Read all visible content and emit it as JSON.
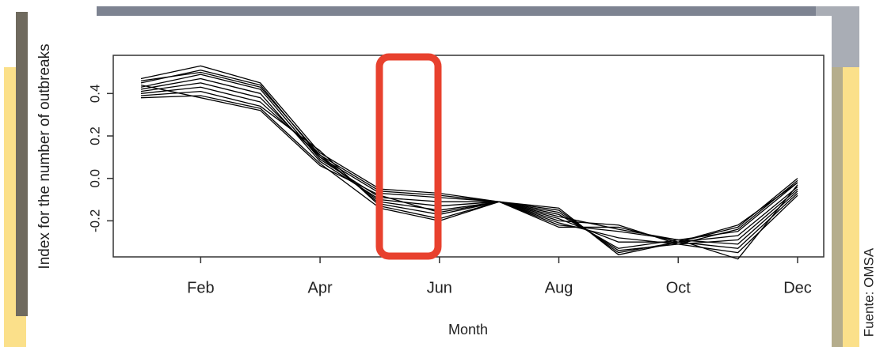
{
  "chart_data": {
    "type": "line",
    "y_label": "Index for the number of outbreaks",
    "x_label": "Month",
    "source": "Fuente: OMSA",
    "categories": [
      null,
      "Feb",
      null,
      "Apr",
      null,
      "Jun",
      null,
      "Aug",
      null,
      "Oct",
      null,
      "Dec"
    ],
    "ylim": [
      -0.37,
      0.58
    ],
    "yticks": [
      -0.2,
      {
        "value": 0,
        "label": "0.0"
      },
      0.2,
      0.4
    ],
    "series": [
      {
        "color": "#000000",
        "values": [
          0.47,
          0.53,
          0.45,
          0.12,
          -0.05,
          -0.07,
          -0.11,
          -0.15,
          -0.35,
          -0.3,
          -0.23,
          0.0
        ]
      },
      {
        "color": "#000000",
        "values": [
          0.45,
          0.51,
          0.44,
          0.1,
          -0.07,
          -0.09,
          -0.11,
          -0.17,
          -0.33,
          -0.29,
          -0.25,
          -0.02
        ]
      },
      {
        "color": "#000000",
        "values": [
          0.43,
          0.49,
          0.42,
          0.09,
          -0.09,
          -0.11,
          -0.11,
          -0.19,
          -0.3,
          -0.3,
          -0.27,
          -0.04
        ]
      },
      {
        "color": "#000000",
        "values": [
          0.42,
          0.47,
          0.4,
          0.08,
          -0.1,
          -0.13,
          -0.11,
          -0.21,
          -0.28,
          -0.31,
          -0.29,
          -0.05
        ]
      },
      {
        "color": "#000000",
        "values": [
          0.41,
          0.45,
          0.38,
          0.1,
          -0.11,
          -0.15,
          -0.11,
          -0.22,
          -0.25,
          -0.29,
          -0.31,
          -0.06
        ]
      },
      {
        "color": "#000000",
        "values": [
          0.4,
          0.43,
          0.36,
          0.11,
          -0.12,
          -0.17,
          -0.11,
          -0.23,
          -0.23,
          -0.3,
          -0.33,
          -0.07
        ]
      },
      {
        "color": "#000000",
        "values": [
          0.39,
          0.41,
          0.34,
          0.13,
          -0.13,
          -0.19,
          -0.11,
          -0.2,
          -0.22,
          -0.31,
          -0.35,
          -0.08
        ]
      },
      {
        "color": "#000000",
        "values": [
          0.38,
          0.39,
          0.33,
          0.07,
          -0.14,
          -0.2,
          -0.11,
          -0.18,
          -0.24,
          -0.29,
          -0.38,
          -0.03
        ]
      },
      {
        "color": "#000000",
        "values": [
          0.44,
          0.38,
          0.32,
          0.06,
          -0.08,
          -0.16,
          -0.11,
          -0.16,
          -0.34,
          -0.31,
          -0.24,
          -0.01
        ]
      },
      {
        "color": "#000000",
        "values": [
          0.46,
          0.5,
          0.43,
          0.11,
          -0.06,
          -0.08,
          -0.11,
          -0.14,
          -0.36,
          -0.3,
          -0.22,
          -0.02
        ]
      }
    ]
  }
}
